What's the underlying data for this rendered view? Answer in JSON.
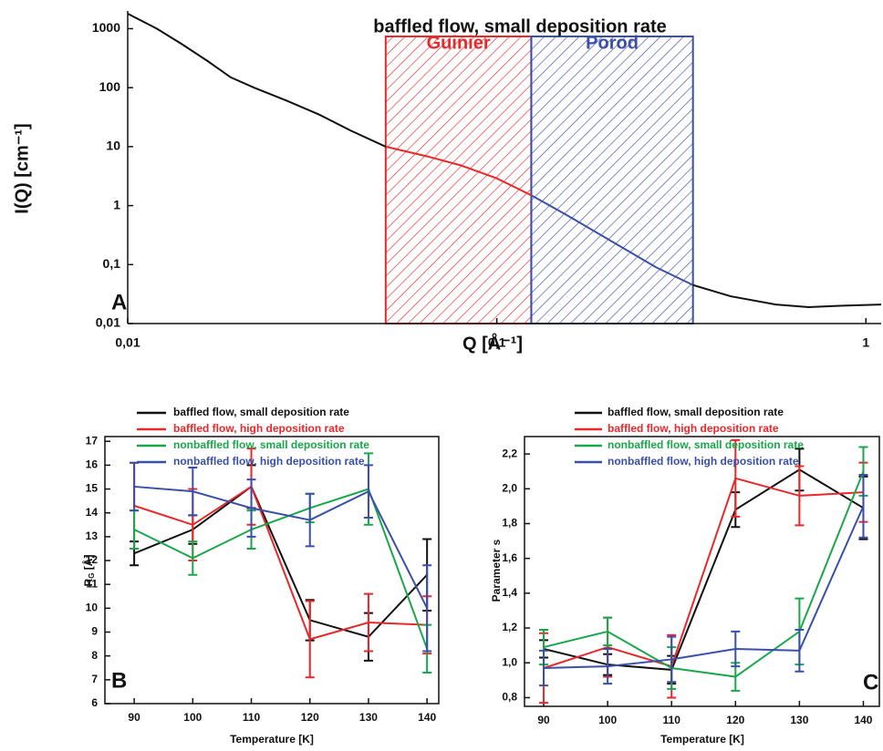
{
  "chart_data": [
    {
      "type": "line",
      "title": "baffled flow, small deposition rate",
      "panel": "A",
      "xlabel": "Q [Å⁻¹]",
      "ylabel": "I(Q) [cm⁻¹]",
      "xscale": "log",
      "yscale": "log",
      "x": [
        0.01,
        0.012,
        0.014,
        0.0165,
        0.019,
        0.022,
        0.027,
        0.033,
        0.04,
        0.05,
        0.065,
        0.08,
        0.1,
        0.124,
        0.153,
        0.2,
        0.27,
        0.34,
        0.43,
        0.57,
        0.7,
        0.85,
        1.1
      ],
      "series": [
        {
          "color": "#111111",
          "values": [
            1800,
            1000,
            550,
            280,
            150,
            100,
            60,
            35,
            19,
            10,
            6.8,
            4.8,
            2.9,
            1.5,
            0.72,
            0.27,
            0.09,
            0.045,
            0.029,
            0.021,
            0.019,
            0.02,
            0.021
          ]
        }
      ],
      "xlim": [
        0.01,
        1.1
      ],
      "ylim": [
        0.01,
        2000
      ],
      "xticks": [
        {
          "value": 0.01,
          "label": "0,01"
        },
        {
          "value": 0.1,
          "label": "0,1"
        },
        1
      ],
      "yticks": [
        {
          "value": 0.01,
          "label": "0,01"
        },
        {
          "value": 0.1,
          "label": "0,1"
        },
        1,
        10,
        100,
        1000
      ],
      "regions": [
        {
          "label": "Guinier",
          "x": [
            0.05,
            0.124
          ],
          "color": "#e8282a"
        },
        {
          "label": "Porod",
          "x": [
            0.124,
            0.34
          ],
          "color": "#3a4fa8"
        }
      ]
    },
    {
      "type": "line",
      "panel": "B",
      "xlabel": "Temperature [K]",
      "ylabel": [
        "R",
        "G",
        " [Å]"
      ],
      "x": [
        90,
        100,
        110,
        120,
        130,
        140
      ],
      "xlim": [
        85,
        142
      ],
      "ylim": [
        6,
        17.2
      ],
      "xticks": [
        90,
        100,
        110,
        120,
        130,
        140
      ],
      "yticks": [
        6,
        7,
        8,
        9,
        10,
        11,
        12,
        13,
        14,
        15,
        16,
        17
      ],
      "series": [
        {
          "name": "baffled flow, small deposition rate",
          "color": "#111111",
          "values": [
            12.3,
            13.3,
            15.1,
            9.5,
            8.8,
            11.4
          ],
          "errors": [
            0.5,
            0.6,
            0.9,
            0.85,
            1.0,
            1.5
          ]
        },
        {
          "name": "baffled flow, high deposition rate",
          "color": "#e8282a",
          "values": [
            14.3,
            13.5,
            15.1,
            8.7,
            9.4,
            9.3
          ],
          "errors": [
            1.8,
            1.5,
            1.6,
            1.6,
            1.2,
            1.2
          ]
        },
        {
          "name": "nonbaffled flow, small deposition rate",
          "color": "#1aa64a",
          "values": [
            13.3,
            12.1,
            13.3,
            14.2,
            15.0,
            8.3
          ],
          "errors": [
            0.8,
            0.7,
            0.8,
            0.6,
            1.5,
            1.0
          ]
        },
        {
          "name": "nonbaffled flow, high deposition rate",
          "color": "#3a4fa8",
          "values": [
            15.1,
            14.9,
            14.2,
            13.7,
            14.9,
            10.0
          ],
          "errors": [
            1.0,
            1.0,
            1.2,
            1.1,
            1.1,
            1.8
          ]
        }
      ]
    },
    {
      "type": "line",
      "panel": "C",
      "xlabel": "Temperature [K]",
      "ylabel": "Parameter s",
      "x": [
        90,
        100,
        110,
        120,
        130,
        140
      ],
      "xlim": [
        87,
        142.5
      ],
      "ylim": [
        0.75,
        2.3
      ],
      "xticks": [
        90,
        100,
        110,
        120,
        130,
        140
      ],
      "yticks": [
        {
          "value": 0.8,
          "label": "0,8"
        },
        {
          "value": 1.0,
          "label": "1,0"
        },
        {
          "value": 1.2,
          "label": "1,2"
        },
        {
          "value": 1.4,
          "label": "1,4"
        },
        {
          "value": 1.6,
          "label": "1,6"
        },
        {
          "value": 1.8,
          "label": "1,8"
        },
        {
          "value": 2.0,
          "label": "2,0"
        },
        {
          "value": 2.2,
          "label": "2,2"
        }
      ],
      "series": [
        {
          "name": "baffled flow, small deposition rate",
          "color": "#111111",
          "values": [
            1.08,
            0.99,
            0.96,
            1.88,
            2.11,
            1.89
          ],
          "errors": [
            0.05,
            0.06,
            0.08,
            0.1,
            0.12,
            0.18
          ]
        },
        {
          "name": "baffled flow, high deposition rate",
          "color": "#e8282a",
          "values": [
            0.97,
            1.09,
            0.98,
            2.06,
            1.96,
            1.98
          ],
          "errors": [
            0.2,
            0.17,
            0.18,
            0.22,
            0.17,
            0.17
          ]
        },
        {
          "name": "nonbaffled flow, small deposition rate",
          "color": "#1aa64a",
          "values": [
            1.09,
            1.18,
            0.97,
            0.92,
            1.18,
            2.1
          ],
          "errors": [
            0.1,
            0.08,
            0.12,
            0.08,
            0.19,
            0.14
          ]
        },
        {
          "name": "nonbaffled flow, high deposition rate",
          "color": "#3a4fa8",
          "values": [
            0.97,
            0.98,
            1.02,
            1.08,
            1.07,
            1.9
          ],
          "errors": [
            0.1,
            0.1,
            0.13,
            0.1,
            0.12,
            0.18
          ]
        }
      ]
    }
  ]
}
